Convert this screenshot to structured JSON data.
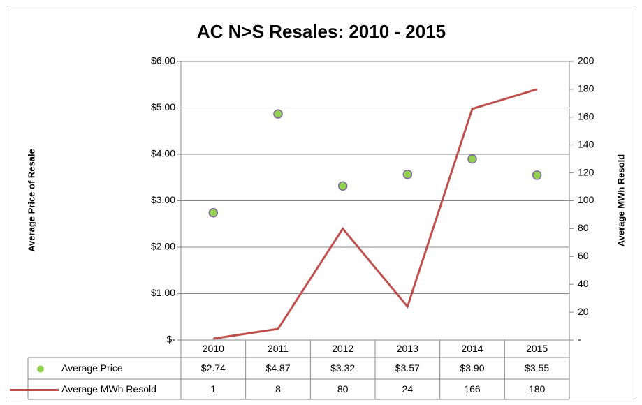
{
  "chart_data": {
    "type": "combo",
    "title": "AC N>S Resales: 2010 - 2015",
    "y_label": "Average Price of Resale",
    "y2_label": "Average MWh Resold",
    "categories": [
      "2010",
      "2011",
      "2012",
      "2013",
      "2014",
      "2015"
    ],
    "series": [
      {
        "name": "Average Price",
        "type": "scatter",
        "color": "#92d050",
        "values": [
          2.74,
          4.87,
          3.32,
          3.57,
          3.9,
          3.55
        ],
        "value_labels": [
          "$2.74",
          "$4.87",
          "$3.32",
          "$3.57",
          "$3.90",
          "$3.55"
        ]
      },
      {
        "name": "Average MWh Resold",
        "type": "line",
        "axis": "y2",
        "color": "#c0504d",
        "values": [
          1,
          8,
          80,
          24,
          166,
          180
        ]
      }
    ],
    "ylim": [
      0,
      6
    ],
    "yticks": [
      {
        "value": 0,
        "label": "$-"
      },
      {
        "value": 1,
        "label": "$1.00"
      },
      {
        "value": 2,
        "label": "$2.00"
      },
      {
        "value": 3,
        "label": "$3.00"
      },
      {
        "value": 4,
        "label": "$4.00"
      },
      {
        "value": 5,
        "label": "$5.00"
      },
      {
        "value": 6,
        "label": "$6.00"
      }
    ],
    "y2lim": [
      0,
      200
    ],
    "y2ticks": [
      {
        "value": 0,
        "label": "-"
      },
      20,
      40,
      60,
      80,
      100,
      120,
      140,
      160,
      180,
      200
    ],
    "grid": true
  }
}
